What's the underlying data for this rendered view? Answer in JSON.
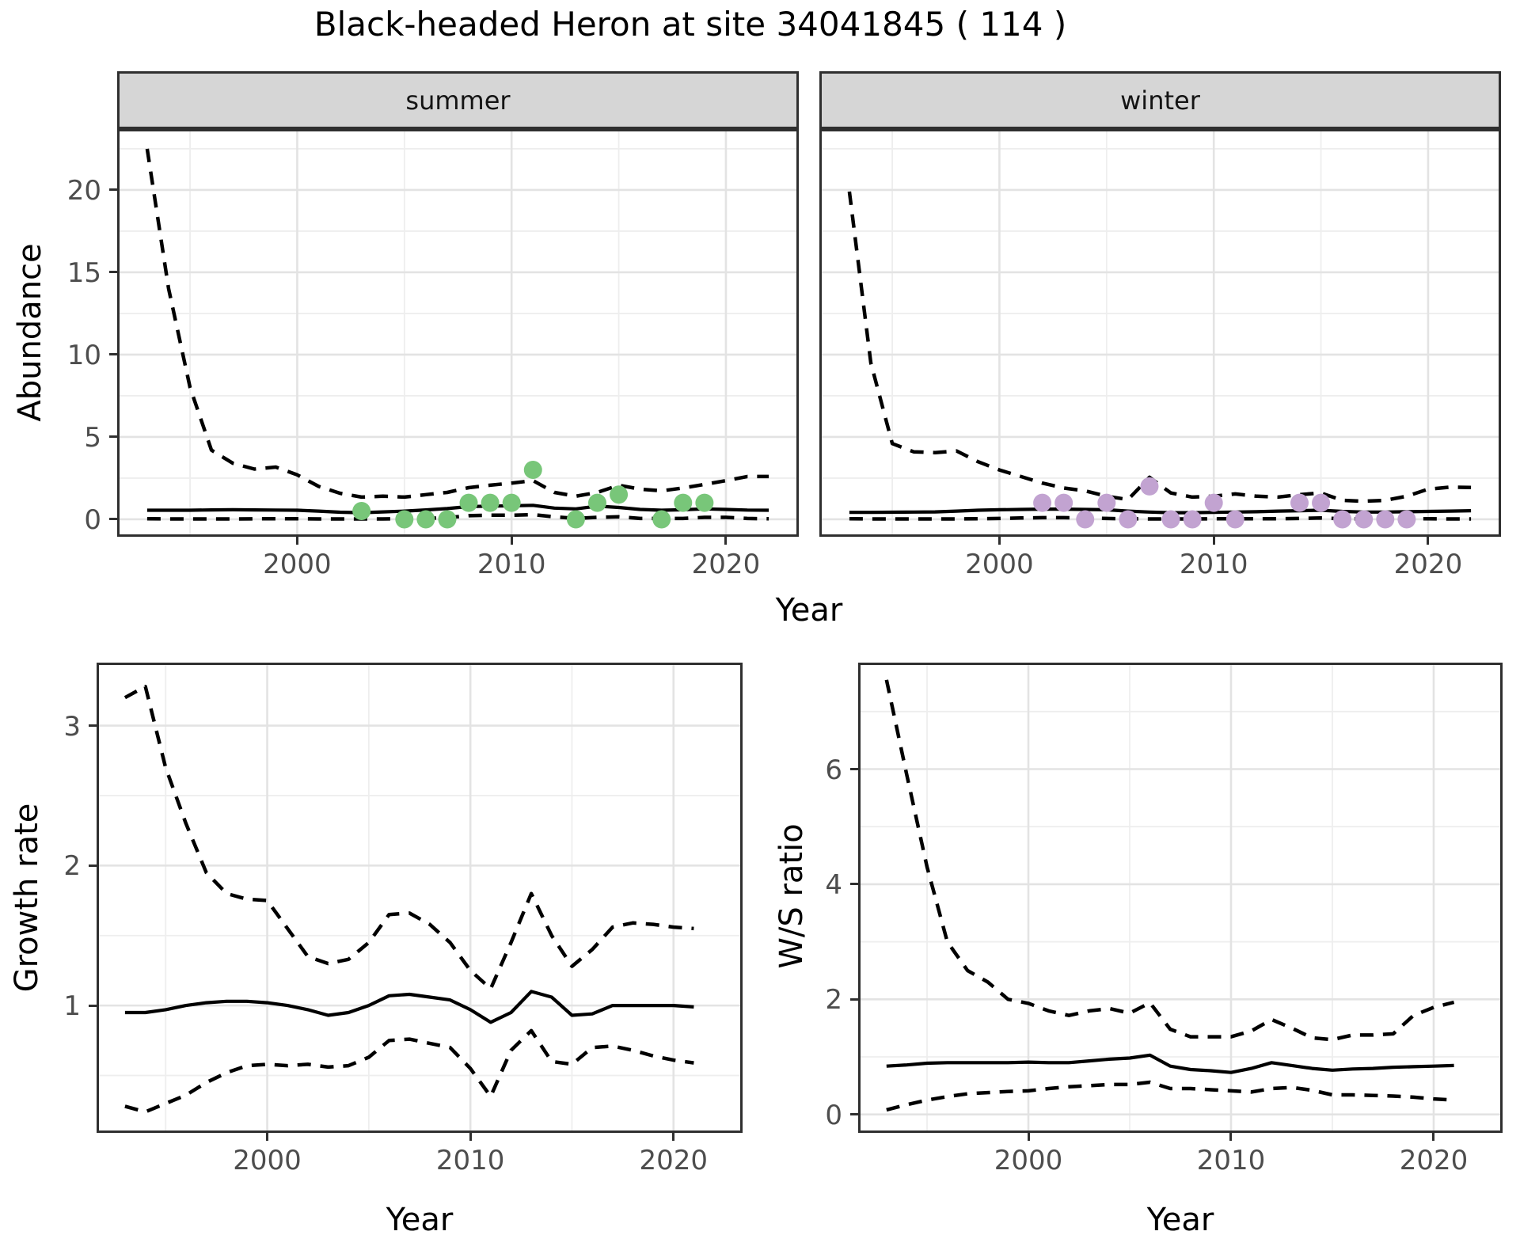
{
  "title": "Black-headed Heron at site 34041845 ( 114 )",
  "labels": {
    "abundance": "Abundance",
    "growth": "Growth rate",
    "ws": "W/S ratio",
    "year": "Year",
    "summer": "summer",
    "winter": "winter"
  },
  "colors": {
    "summer_point": "#78c679",
    "winter_point": "#c2a3d1",
    "line": "#000000",
    "grid_major": "#e3e3e3",
    "grid_minor": "#eeeeee",
    "panel_border": "#2f2f2f",
    "strip_fill": "#d6d6d6",
    "tick_text": "#4d4d4d"
  },
  "chart_data": [
    {
      "id": "summer",
      "type": "line",
      "title": "summer",
      "xlabel": "Year",
      "ylabel": "Abundance",
      "xlim": [
        1991.6,
        2023.4
      ],
      "ylim": [
        -1.06,
        23.7
      ],
      "x_ticks": [
        2000,
        2010,
        2020
      ],
      "x_minor": [
        1995,
        2005,
        2015
      ],
      "y_ticks": [
        0,
        5,
        10,
        15,
        20
      ],
      "y_minor": [
        2.5,
        7.5,
        12.5,
        17.5,
        22.5
      ],
      "show_y_axis": true,
      "legend": "none",
      "grid": true,
      "series": [
        {
          "name": "upper_ci",
          "style": "dashed",
          "x": [
            1993,
            1994,
            1995,
            1996,
            1997,
            1998,
            1999,
            2000,
            2001,
            2002,
            2003,
            2004,
            2005,
            2006,
            2007,
            2008,
            2009,
            2010,
            2011,
            2012,
            2013,
            2014,
            2015,
            2016,
            2017,
            2018,
            2019,
            2020,
            2021,
            2022
          ],
          "y": [
            22.5,
            14,
            8,
            4.2,
            3.4,
            3.05,
            3.17,
            2.7,
            2.0,
            1.58,
            1.35,
            1.4,
            1.35,
            1.5,
            1.63,
            1.92,
            2.07,
            2.2,
            2.35,
            1.63,
            1.4,
            1.63,
            2.07,
            1.83,
            1.73,
            1.9,
            2.12,
            2.35,
            2.6,
            2.6
          ]
        },
        {
          "name": "mean",
          "style": "solid",
          "x": [
            1993,
            1994,
            1995,
            1996,
            1997,
            1998,
            1999,
            2000,
            2001,
            2002,
            2003,
            2004,
            2005,
            2006,
            2007,
            2008,
            2009,
            2010,
            2011,
            2012,
            2013,
            2014,
            2015,
            2016,
            2017,
            2018,
            2019,
            2020,
            2021,
            2022
          ],
          "y": [
            0.55,
            0.55,
            0.55,
            0.57,
            0.58,
            0.57,
            0.56,
            0.55,
            0.5,
            0.43,
            0.4,
            0.45,
            0.5,
            0.57,
            0.65,
            0.77,
            0.8,
            0.82,
            0.85,
            0.68,
            0.63,
            0.8,
            0.72,
            0.6,
            0.55,
            0.58,
            0.63,
            0.6,
            0.56,
            0.55
          ]
        },
        {
          "name": "lower_ci",
          "style": "dashed",
          "x": [
            1993,
            1994,
            1995,
            1996,
            1997,
            1998,
            1999,
            2000,
            2001,
            2002,
            2003,
            2004,
            2005,
            2006,
            2007,
            2008,
            2009,
            2010,
            2011,
            2012,
            2013,
            2014,
            2015,
            2016,
            2017,
            2018,
            2019,
            2020,
            2021,
            2022
          ],
          "y": [
            0.03,
            0.02,
            0.02,
            0.02,
            0.02,
            0.03,
            0.03,
            0.03,
            0.02,
            0.02,
            0.02,
            0.02,
            0.03,
            0.05,
            0.1,
            0.22,
            0.25,
            0.25,
            0.28,
            0.15,
            0.05,
            0.12,
            0.15,
            0.05,
            0.05,
            0.05,
            0.12,
            0.12,
            0.05,
            0.03
          ]
        }
      ],
      "points": {
        "color": "#78c679",
        "x": [
          2003,
          2005,
          2006,
          2007,
          2008,
          2009,
          2010,
          2011,
          2013,
          2014,
          2015,
          2017,
          2018,
          2019
        ],
        "y": [
          0.5,
          0,
          0,
          0,
          1,
          1,
          1,
          3,
          0,
          1,
          1.5,
          0,
          1,
          1
        ]
      }
    },
    {
      "id": "winter",
      "type": "line",
      "title": "winter",
      "xlabel": "Year",
      "ylabel": "Abundance",
      "xlim": [
        1991.6,
        2023.4
      ],
      "ylim": [
        -1.06,
        23.7
      ],
      "x_ticks": [
        2000,
        2010,
        2020
      ],
      "x_minor": [
        1995,
        2005,
        2015
      ],
      "y_ticks": [
        0,
        5,
        10,
        15,
        20
      ],
      "y_minor": [
        2.5,
        7.5,
        12.5,
        17.5,
        22.5
      ],
      "show_y_axis": false,
      "legend": "none",
      "grid": true,
      "series": [
        {
          "name": "upper_ci",
          "style": "dashed",
          "x": [
            1993,
            1994,
            1995,
            1996,
            1997,
            1998,
            1999,
            2000,
            2001,
            2002,
            2003,
            2004,
            2005,
            2006,
            2007,
            2008,
            2009,
            2010,
            2011,
            2012,
            2013,
            2014,
            2015,
            2016,
            2017,
            2018,
            2019,
            2020,
            2021,
            2022
          ],
          "y": [
            19.9,
            9.5,
            4.6,
            4.1,
            4.05,
            4.15,
            3.5,
            3.0,
            2.6,
            2.2,
            1.9,
            1.73,
            1.4,
            1.2,
            2.55,
            1.6,
            1.35,
            1.4,
            1.54,
            1.4,
            1.35,
            1.5,
            1.6,
            1.15,
            1.1,
            1.15,
            1.4,
            1.83,
            1.95,
            1.93
          ]
        },
        {
          "name": "mean",
          "style": "solid",
          "x": [
            1993,
            1994,
            1995,
            1996,
            1997,
            1998,
            1999,
            2000,
            2001,
            2002,
            2003,
            2004,
            2005,
            2006,
            2007,
            2008,
            2009,
            2010,
            2011,
            2012,
            2013,
            2014,
            2015,
            2016,
            2017,
            2018,
            2019,
            2020,
            2021,
            2022
          ],
          "y": [
            0.42,
            0.42,
            0.43,
            0.44,
            0.45,
            0.5,
            0.55,
            0.58,
            0.6,
            0.62,
            0.62,
            0.6,
            0.58,
            0.5,
            0.44,
            0.4,
            0.4,
            0.42,
            0.44,
            0.46,
            0.5,
            0.52,
            0.55,
            0.48,
            0.44,
            0.44,
            0.46,
            0.48,
            0.5,
            0.52
          ]
        },
        {
          "name": "lower_ci",
          "style": "dashed",
          "x": [
            1993,
            1994,
            1995,
            1996,
            1997,
            1998,
            1999,
            2000,
            2001,
            2002,
            2003,
            2004,
            2005,
            2006,
            2007,
            2008,
            2009,
            2010,
            2011,
            2012,
            2013,
            2014,
            2015,
            2016,
            2017,
            2018,
            2019,
            2020,
            2021,
            2022
          ],
          "y": [
            0.03,
            0.02,
            0.02,
            0.02,
            0.02,
            0.02,
            0.03,
            0.05,
            0.08,
            0.1,
            0.1,
            0.08,
            0.05,
            0.03,
            0.02,
            0.02,
            0.02,
            0.03,
            0.03,
            0.03,
            0.03,
            0.05,
            0.08,
            0.03,
            0.02,
            0.02,
            0.03,
            0.03,
            0.02,
            0.02
          ]
        }
      ],
      "points": {
        "color": "#c2a3d1",
        "x": [
          2002,
          2003,
          2004,
          2005,
          2006,
          2007,
          2008,
          2009,
          2010,
          2011,
          2014,
          2015,
          2016,
          2017,
          2018,
          2019
        ],
        "y": [
          1,
          1,
          0,
          1,
          0,
          2,
          0,
          0,
          1,
          0,
          1,
          1,
          0,
          0,
          0,
          0
        ]
      }
    },
    {
      "id": "growth",
      "type": "line",
      "title": "Growth rate",
      "xlabel": "Year",
      "ylabel": "Growth rate",
      "xlim": [
        1991.6,
        2023.4
      ],
      "ylim": [
        0.09,
        3.45
      ],
      "x_ticks": [
        2000,
        2010,
        2020
      ],
      "x_minor": [
        1995,
        2005,
        2015
      ],
      "y_ticks": [
        1,
        2,
        3
      ],
      "y_minor": [
        0.5,
        1.5,
        2.5
      ],
      "show_y_axis": true,
      "legend": "none",
      "grid": true,
      "series": [
        {
          "name": "upper_ci",
          "style": "dashed",
          "x": [
            1993,
            1994,
            1995,
            1996,
            1997,
            1998,
            1999,
            2000,
            2001,
            2002,
            2003,
            2004,
            2005,
            2006,
            2007,
            2008,
            2009,
            2010,
            2011,
            2012,
            2013,
            2014,
            2015,
            2016,
            2017,
            2018,
            2019,
            2020,
            2021
          ],
          "y": [
            3.2,
            3.28,
            2.7,
            2.3,
            1.95,
            1.8,
            1.76,
            1.75,
            1.55,
            1.35,
            1.3,
            1.33,
            1.45,
            1.65,
            1.66,
            1.58,
            1.45,
            1.25,
            1.12,
            1.45,
            1.8,
            1.5,
            1.28,
            1.4,
            1.56,
            1.59,
            1.58,
            1.56,
            1.55
          ]
        },
        {
          "name": "mean",
          "style": "solid",
          "x": [
            1993,
            1994,
            1995,
            1996,
            1997,
            1998,
            1999,
            2000,
            2001,
            2002,
            2003,
            2004,
            2005,
            2006,
            2007,
            2008,
            2009,
            2010,
            2011,
            2012,
            2013,
            2014,
            2015,
            2016,
            2017,
            2018,
            2019,
            2020,
            2021
          ],
          "y": [
            0.95,
            0.95,
            0.97,
            1.0,
            1.02,
            1.03,
            1.03,
            1.02,
            1.0,
            0.97,
            0.93,
            0.95,
            1.0,
            1.07,
            1.08,
            1.06,
            1.04,
            0.97,
            0.88,
            0.95,
            1.1,
            1.06,
            0.93,
            0.94,
            1.0,
            1.0,
            1.0,
            1.0,
            0.99
          ]
        },
        {
          "name": "lower_ci",
          "style": "dashed",
          "x": [
            1993,
            1994,
            1995,
            1996,
            1997,
            1998,
            1999,
            2000,
            2001,
            2002,
            2003,
            2004,
            2005,
            2006,
            2007,
            2008,
            2009,
            2010,
            2011,
            2012,
            2013,
            2014,
            2015,
            2016,
            2017,
            2018,
            2019,
            2020,
            2021
          ],
          "y": [
            0.28,
            0.24,
            0.3,
            0.36,
            0.45,
            0.52,
            0.57,
            0.58,
            0.57,
            0.58,
            0.56,
            0.57,
            0.63,
            0.75,
            0.76,
            0.73,
            0.7,
            0.55,
            0.35,
            0.68,
            0.82,
            0.6,
            0.58,
            0.7,
            0.71,
            0.68,
            0.64,
            0.61,
            0.59
          ]
        }
      ],
      "points": null
    },
    {
      "id": "ws",
      "type": "line",
      "title": "W/S ratio",
      "xlabel": "Year",
      "ylabel": "W/S ratio",
      "xlim": [
        1991.6,
        2023.4
      ],
      "ylim": [
        -0.32,
        7.85
      ],
      "x_ticks": [
        2000,
        2010,
        2020
      ],
      "x_minor": [
        1995,
        2005,
        2015
      ],
      "y_ticks": [
        0,
        2,
        4,
        6
      ],
      "y_minor": [
        1,
        3,
        5,
        7
      ],
      "show_y_axis": true,
      "legend": "none",
      "grid": true,
      "series": [
        {
          "name": "upper_ci",
          "style": "dashed",
          "x": [
            1993,
            1994,
            1995,
            1996,
            1997,
            1998,
            1999,
            2000,
            2001,
            2002,
            2003,
            2004,
            2005,
            2006,
            2007,
            2008,
            2009,
            2010,
            2011,
            2012,
            2013,
            2014,
            2015,
            2016,
            2017,
            2018,
            2019,
            2020,
            2021
          ],
          "y": [
            7.55,
            5.9,
            4.3,
            3.0,
            2.5,
            2.3,
            2.0,
            1.93,
            1.8,
            1.72,
            1.8,
            1.84,
            1.76,
            1.94,
            1.48,
            1.35,
            1.35,
            1.35,
            1.45,
            1.65,
            1.5,
            1.33,
            1.3,
            1.38,
            1.38,
            1.4,
            1.72,
            1.86,
            1.95
          ]
        },
        {
          "name": "mean",
          "style": "solid",
          "x": [
            1993,
            1994,
            1995,
            1996,
            1997,
            1998,
            1999,
            2000,
            2001,
            2002,
            2003,
            2004,
            2005,
            2006,
            2007,
            2008,
            2009,
            2010,
            2011,
            2012,
            2013,
            2014,
            2015,
            2016,
            2017,
            2018,
            2019,
            2020,
            2021
          ],
          "y": [
            0.84,
            0.86,
            0.89,
            0.9,
            0.9,
            0.9,
            0.9,
            0.91,
            0.9,
            0.9,
            0.93,
            0.96,
            0.98,
            1.03,
            0.84,
            0.78,
            0.76,
            0.73,
            0.8,
            0.9,
            0.85,
            0.8,
            0.77,
            0.79,
            0.8,
            0.82,
            0.83,
            0.84,
            0.85
          ]
        },
        {
          "name": "lower_ci",
          "style": "dashed",
          "x": [
            1993,
            1994,
            1995,
            1996,
            1997,
            1998,
            1999,
            2000,
            2001,
            2002,
            2003,
            2004,
            2005,
            2006,
            2007,
            2008,
            2009,
            2010,
            2011,
            2012,
            2013,
            2014,
            2015,
            2016,
            2017,
            2018,
            2019,
            2020,
            2021
          ],
          "y": [
            0.08,
            0.17,
            0.25,
            0.31,
            0.36,
            0.38,
            0.4,
            0.41,
            0.45,
            0.48,
            0.5,
            0.52,
            0.52,
            0.56,
            0.45,
            0.45,
            0.43,
            0.41,
            0.39,
            0.45,
            0.47,
            0.42,
            0.34,
            0.34,
            0.33,
            0.32,
            0.3,
            0.27,
            0.25
          ]
        }
      ],
      "points": null
    }
  ]
}
